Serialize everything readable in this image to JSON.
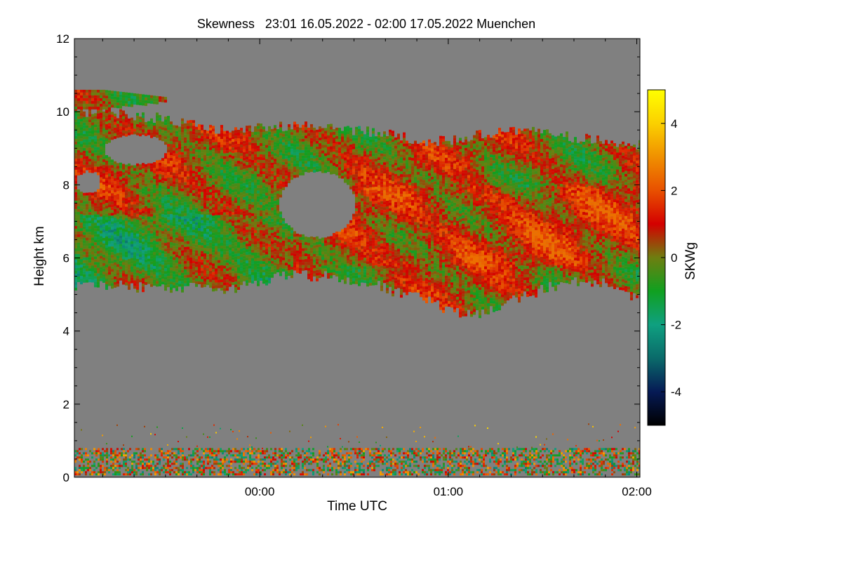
{
  "chart_data": {
    "type": "heatmap",
    "title": "Skewness   23:01 16.05.2022 - 02:00 17.05.2022 Muenchen",
    "xlabel": "Time UTC",
    "ylabel": "Height km",
    "x_range_minutes_from_midnight": [
      -59,
      121
    ],
    "xlim_label": [
      "23:01",
      "02:00"
    ],
    "ylim": [
      0,
      12
    ],
    "x_ticks": [
      {
        "minute": 0,
        "label": "00:00"
      },
      {
        "minute": 60,
        "label": "01:00"
      },
      {
        "minute": 120,
        "label": "02:00"
      }
    ],
    "y_ticks": [
      0,
      2,
      4,
      6,
      8,
      10,
      12
    ],
    "colorbar": {
      "label": "SKWg",
      "range": [
        -5,
        5
      ],
      "ticks": [
        -4,
        -2,
        0,
        2,
        4
      ],
      "stops": [
        {
          "value": -5,
          "color": "#000000"
        },
        {
          "value": -4,
          "color": "#061a55"
        },
        {
          "value": -3,
          "color": "#0a6a6a"
        },
        {
          "value": -2,
          "color": "#0fa080"
        },
        {
          "value": -1,
          "color": "#10a020"
        },
        {
          "value": 0,
          "color": "#6e7e10"
        },
        {
          "value": 1,
          "color": "#d40000"
        },
        {
          "value": 2,
          "color": "#e85000"
        },
        {
          "value": 3,
          "color": "#f09000"
        },
        {
          "value": 4,
          "color": "#fbd000"
        },
        {
          "value": 5,
          "color": "#ffff00"
        }
      ]
    },
    "no_data_color": "#808080",
    "cloud_layer_km": {
      "minutes": [
        -59,
        -50,
        -40,
        -30,
        -20,
        -10,
        0,
        10,
        20,
        30,
        40,
        50,
        60,
        70,
        80,
        90,
        100,
        110,
        121
      ],
      "bottom": [
        5.3,
        5.3,
        5.2,
        5.2,
        5.3,
        5.2,
        5.4,
        5.6,
        5.5,
        5.4,
        5.2,
        5.0,
        4.6,
        4.5,
        4.9,
        5.2,
        5.4,
        5.3,
        4.9
      ],
      "top": [
        10.0,
        10.0,
        9.9,
        9.8,
        9.6,
        9.5,
        9.6,
        9.6,
        9.6,
        9.5,
        9.4,
        9.2,
        9.2,
        9.4,
        9.5,
        9.4,
        9.3,
        9.2,
        9.1
      ]
    },
    "upper_patch_km": {
      "minutes": [
        -59,
        -50,
        -40,
        -30
      ],
      "bottom": [
        10.1,
        10.1,
        10.2,
        10.3
      ],
      "top": [
        10.6,
        10.6,
        10.5,
        10.4
      ]
    },
    "clear_gaps": [
      {
        "minute_center": -40,
        "km_center": 9.0,
        "minute_halfwidth": 10,
        "km_halfheight": 0.4
      },
      {
        "minute_center": 18,
        "km_center": 7.5,
        "minute_halfwidth": 12,
        "km_halfheight": 0.9
      },
      {
        "minute_center": -55,
        "km_center": 8.1,
        "minute_halfwidth": 4,
        "km_halfheight": 0.3
      }
    ],
    "boundary_layer_km": [
      0,
      1.5
    ]
  }
}
